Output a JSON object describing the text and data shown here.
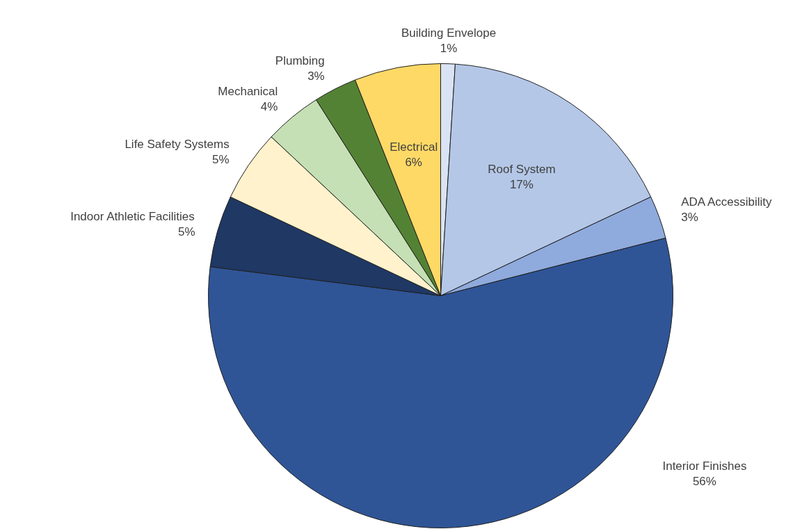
{
  "chart_data": {
    "type": "pie",
    "categories": [
      "Building Envelope",
      "Roof System",
      "ADA Accessibility",
      "Interior Finishes",
      "Indoor Athletic Facilities",
      "Life Safety Systems",
      "Mechanical",
      "Plumbing",
      "Electrical"
    ],
    "values": [
      1,
      17,
      3,
      56,
      5,
      5,
      4,
      3,
      6
    ],
    "value_labels": [
      "1%",
      "17%",
      "3%",
      "56%",
      "5%",
      "5%",
      "4%",
      "3%",
      "6%"
    ],
    "colors": [
      "#dae3f3",
      "#b4c7e7",
      "#8faadc",
      "#2f5597",
      "#1f3864",
      "#fff2cc",
      "#c5e0b4",
      "#548235",
      "#ffd966"
    ],
    "legend": false
  }
}
